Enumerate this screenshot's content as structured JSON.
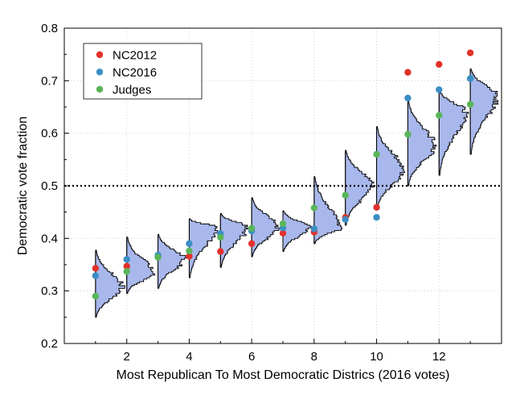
{
  "chart_data": {
    "type": "scatter",
    "xlabel": "Most Republican To Most Democratic Districs (2016 votes)",
    "ylabel": "Democratic vote fraction",
    "xlim": [
      0,
      14
    ],
    "ylim": [
      0.2,
      0.8
    ],
    "xticks": [
      "2",
      "4",
      "6",
      "8",
      "10",
      "12"
    ],
    "yticks": [
      "0.2",
      "0.3",
      "0.4",
      "0.5",
      "0.6",
      "0.7",
      "0.8"
    ],
    "grid": true,
    "reference_line_y": 0.5,
    "legend_position": "top-left",
    "categories": [
      1,
      2,
      3,
      4,
      5,
      6,
      7,
      8,
      9,
      10,
      11,
      12,
      13
    ],
    "series": [
      {
        "name": "NC2012",
        "color": "#e2322a",
        "values": [
          0.343,
          0.347,
          0.365,
          0.366,
          0.375,
          0.39,
          0.41,
          0.412,
          0.44,
          0.459,
          0.716,
          0.731,
          0.753
        ]
      },
      {
        "name": "NC2016",
        "color": "#3b8fc4",
        "values": [
          0.329,
          0.36,
          0.368,
          0.39,
          0.409,
          0.414,
          0.42,
          0.418,
          0.436,
          0.44,
          0.667,
          0.683,
          0.704
        ]
      },
      {
        "name": "Judges",
        "color": "#5ab55a",
        "values": [
          0.29,
          0.337,
          0.364,
          0.376,
          0.402,
          0.419,
          0.428,
          0.458,
          0.482,
          0.56,
          0.598,
          0.634,
          0.655
        ]
      }
    ],
    "distributions": [
      {
        "x": 1,
        "min": 0.25,
        "max": 0.375,
        "mode": 0.305
      },
      {
        "x": 2,
        "min": 0.295,
        "max": 0.4,
        "mode": 0.333
      },
      {
        "x": 3,
        "min": 0.305,
        "max": 0.405,
        "mode": 0.36
      },
      {
        "x": 4,
        "min": 0.325,
        "max": 0.435,
        "mode": 0.42
      },
      {
        "x": 5,
        "min": 0.345,
        "max": 0.445,
        "mode": 0.42
      },
      {
        "x": 6,
        "min": 0.365,
        "max": 0.475,
        "mode": 0.42
      },
      {
        "x": 7,
        "min": 0.375,
        "max": 0.45,
        "mode": 0.42
      },
      {
        "x": 8,
        "min": 0.39,
        "max": 0.515,
        "mode": 0.42
      },
      {
        "x": 9,
        "min": 0.425,
        "max": 0.565,
        "mode": 0.5
      },
      {
        "x": 10,
        "min": 0.455,
        "max": 0.61,
        "mode": 0.53
      },
      {
        "x": 11,
        "min": 0.5,
        "max": 0.66,
        "mode": 0.575
      },
      {
        "x": 12,
        "min": 0.52,
        "max": 0.68,
        "mode": 0.64
      },
      {
        "x": 13,
        "min": 0.56,
        "max": 0.72,
        "mode": 0.67
      }
    ],
    "histogram_color": "#a9b8ec"
  }
}
